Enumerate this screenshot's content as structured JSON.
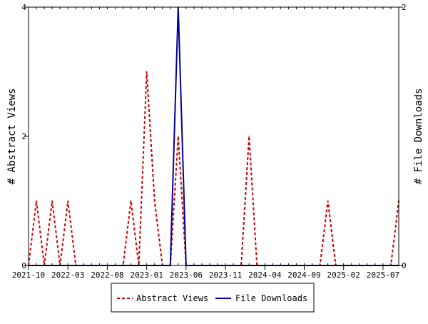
{
  "chart_data": {
    "type": "line",
    "left_axis": {
      "label": "# Abstract Views",
      "ylim": [
        0,
        4
      ],
      "ticks": [
        "0",
        "2",
        "4"
      ]
    },
    "right_axis": {
      "label": "# File Downloads",
      "ylim": [
        0,
        2
      ],
      "ticks": [
        "0",
        "2"
      ]
    },
    "x_tick_labels": [
      "2021-10",
      "2022-03",
      "2022-08",
      "2023-01",
      "2023-06",
      "2023-11",
      "2024-04",
      "2024-09",
      "2025-02",
      "2025-07"
    ],
    "x_ticks": [
      0,
      5,
      10,
      15,
      20,
      25,
      30,
      35,
      40,
      45
    ],
    "x_range": [
      0,
      47
    ],
    "series": [
      {
        "name": "Abstract Views",
        "axis": "left",
        "color": "#cc0000",
        "dash": true,
        "values": [
          0,
          1,
          0,
          1,
          0,
          1,
          0,
          0,
          0,
          0,
          0,
          0,
          0,
          1,
          0,
          3,
          1,
          0,
          0,
          2,
          0,
          0,
          0,
          0,
          0,
          0,
          0,
          0,
          2,
          0,
          0,
          0,
          0,
          0,
          0,
          0,
          0,
          0,
          1,
          0,
          0,
          0,
          0,
          0,
          0,
          0,
          0,
          1
        ]
      },
      {
        "name": "File Downloads",
        "axis": "right",
        "color": "#000099",
        "dash": false,
        "values": [
          0,
          0,
          0,
          0,
          0,
          0,
          0,
          0,
          0,
          0,
          0,
          0,
          0,
          0,
          0,
          0,
          0,
          0,
          0,
          2,
          0,
          0,
          0,
          0,
          0,
          0,
          0,
          0,
          0,
          0,
          0,
          0,
          0,
          0,
          0,
          0,
          0,
          0,
          0,
          0,
          0,
          0,
          0,
          0,
          0,
          0,
          0,
          0
        ]
      }
    ]
  }
}
